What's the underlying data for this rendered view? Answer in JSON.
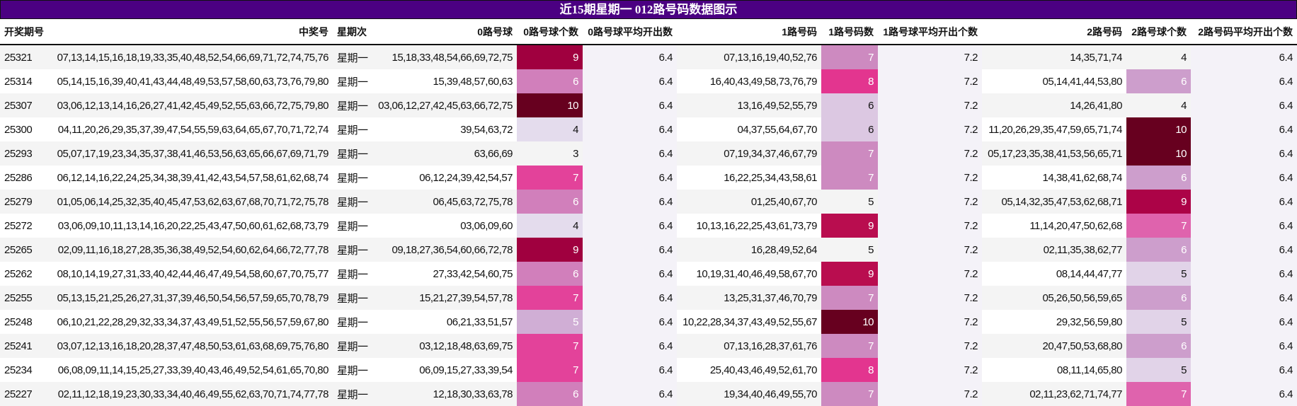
{
  "title": "近15期星期一 012路号码数据图示",
  "headers": [
    "开奖期号",
    "中奖号",
    "星期次",
    "0路号球",
    "0路号球个数",
    "0路号球平均开出数",
    "1路号码",
    "1路号码数",
    "1路号球平均开出个数",
    "2路号码",
    "2路号球个数",
    "2路号码平均开出个数"
  ],
  "rows": [
    {
      "issue": "25321",
      "numbers": "07,13,14,15,16,18,19,33,35,40,48,52,54,66,69,71,72,74,75,76",
      "weekday": "星期一",
      "r0": "15,18,33,48,54,66,69,72,75",
      "c0": "9",
      "c0_color": "#a0003f",
      "a0": "6.4",
      "r1": "07,13,16,19,40,52,76",
      "c1": "7",
      "c1_color": "#cd8ac0",
      "a1": "7.2",
      "r2": "14,35,71,74",
      "c2": "4",
      "c2_color": "",
      "a2": "6.4"
    },
    {
      "issue": "25314",
      "numbers": "05,14,15,16,39,40,41,43,44,48,49,53,57,58,60,63,73,76,79,80",
      "weekday": "星期一",
      "r0": "15,39,48,57,60,63",
      "c0": "6",
      "c0_color": "#d17fbb",
      "a0": "6.4",
      "r1": "16,40,43,49,58,73,76,79",
      "c1": "8",
      "c1_color": "#e3358f",
      "a1": "7.2",
      "r2": "05,14,41,44,53,80",
      "c2": "6",
      "c2_color": "#cd9ecc",
      "a2": "6.4"
    },
    {
      "issue": "25307",
      "numbers": "03,06,12,13,14,16,26,27,41,42,45,49,52,55,63,66,72,75,79,80",
      "weekday": "星期一",
      "r0": "03,06,12,27,42,45,63,66,72,75",
      "c0": "10",
      "c0_color": "#67001f",
      "a0": "6.4",
      "r1": "13,16,49,52,55,79",
      "c1": "6",
      "c1_color": "#dcc8e2",
      "a1": "7.2",
      "r2": "14,26,41,80",
      "c2": "4",
      "c2_color": "",
      "a2": "6.4"
    },
    {
      "issue": "25300",
      "numbers": "04,11,20,26,29,35,37,39,47,54,55,59,63,64,65,67,70,71,72,74",
      "weekday": "星期一",
      "r0": "39,54,63,72",
      "c0": "4",
      "c0_color": "#e4dced",
      "a0": "6.4",
      "r1": "04,37,55,64,67,70",
      "c1": "6",
      "c1_color": "#dcc8e2",
      "a1": "7.2",
      "r2": "11,20,26,29,35,47,59,65,71,74",
      "c2": "10",
      "c2_color": "#67001f",
      "a2": "6.4"
    },
    {
      "issue": "25293",
      "numbers": "05,07,17,19,23,34,35,37,38,41,46,53,56,63,65,66,67,69,71,79",
      "weekday": "星期一",
      "r0": "63,66,69",
      "c0": "3",
      "c0_color": "",
      "a0": "6.4",
      "r1": "07,19,34,37,46,67,79",
      "c1": "7",
      "c1_color": "#cd8ac0",
      "a1": "7.2",
      "r2": "05,17,23,35,38,41,53,56,65,71",
      "c2": "10",
      "c2_color": "#67001f",
      "a2": "6.4"
    },
    {
      "issue": "25286",
      "numbers": "06,12,14,16,22,24,25,34,38,39,41,42,43,54,57,58,61,62,68,74",
      "weekday": "星期一",
      "r0": "06,12,24,39,42,54,57",
      "c0": "7",
      "c0_color": "#e3429a",
      "a0": "6.4",
      "r1": "16,22,25,34,43,58,61",
      "c1": "7",
      "c1_color": "#cd8ac0",
      "a1": "7.2",
      "r2": "14,38,41,62,68,74",
      "c2": "6",
      "c2_color": "#cd9ecc",
      "a2": "6.4"
    },
    {
      "issue": "25279",
      "numbers": "01,05,06,14,25,32,35,40,45,47,53,62,63,67,68,70,71,72,75,78",
      "weekday": "星期一",
      "r0": "06,45,63,72,75,78",
      "c0": "6",
      "c0_color": "#d17fbb",
      "a0": "6.4",
      "r1": "01,25,40,67,70",
      "c1": "5",
      "c1_color": "",
      "a1": "7.2",
      "r2": "05,14,32,35,47,53,62,68,71",
      "c2": "9",
      "c2_color": "#ac0347",
      "a2": "6.4"
    },
    {
      "issue": "25272",
      "numbers": "03,06,09,10,11,13,14,16,20,22,25,43,47,50,60,61,62,68,73,79",
      "weekday": "星期一",
      "r0": "03,06,09,60",
      "c0": "4",
      "c0_color": "#e4dced",
      "a0": "6.4",
      "r1": "10,13,16,22,25,43,61,73,79",
      "c1": "9",
      "c1_color": "#b90d4f",
      "a1": "7.2",
      "r2": "11,14,20,47,50,62,68",
      "c2": "7",
      "c2_color": "#df63ad",
      "a2": "6.4"
    },
    {
      "issue": "25265",
      "numbers": "02,09,11,16,18,27,28,35,36,38,49,52,54,60,62,64,66,72,77,78",
      "weekday": "星期一",
      "r0": "09,18,27,36,54,60,66,72,78",
      "c0": "9",
      "c0_color": "#a0003f",
      "a0": "6.4",
      "r1": "16,28,49,52,64",
      "c1": "5",
      "c1_color": "",
      "a1": "7.2",
      "r2": "02,11,35,38,62,77",
      "c2": "6",
      "c2_color": "#cd9ecc",
      "a2": "6.4"
    },
    {
      "issue": "25262",
      "numbers": "08,10,14,19,27,31,33,40,42,44,46,47,49,54,58,60,67,70,75,77",
      "weekday": "星期一",
      "r0": "27,33,42,54,60,75",
      "c0": "6",
      "c0_color": "#d17fbb",
      "a0": "6.4",
      "r1": "10,19,31,40,46,49,58,67,70",
      "c1": "9",
      "c1_color": "#b90d4f",
      "a1": "7.2",
      "r2": "08,14,44,47,77",
      "c2": "5",
      "c2_color": "#e1d3e8",
      "a2": "6.4"
    },
    {
      "issue": "25255",
      "numbers": "05,13,15,21,25,26,27,31,37,39,46,50,54,56,57,59,65,70,78,79",
      "weekday": "星期一",
      "r0": "15,21,27,39,54,57,78",
      "c0": "7",
      "c0_color": "#e3429a",
      "a0": "6.4",
      "r1": "13,25,31,37,46,70,79",
      "c1": "7",
      "c1_color": "#cd8ac0",
      "a1": "7.2",
      "r2": "05,26,50,56,59,65",
      "c2": "6",
      "c2_color": "#cd9ecc",
      "a2": "6.4"
    },
    {
      "issue": "25248",
      "numbers": "06,10,21,22,28,29,32,33,34,37,43,49,51,52,55,56,57,59,67,80",
      "weekday": "星期一",
      "r0": "06,21,33,51,57",
      "c0": "5",
      "c0_color": "#d0aed5",
      "a0": "6.4",
      "r1": "10,22,28,34,37,43,49,52,55,67",
      "c1": "10",
      "c1_color": "#67001f",
      "a1": "7.2",
      "r2": "29,32,56,59,80",
      "c2": "5",
      "c2_color": "#e1d3e8",
      "a2": "6.4"
    },
    {
      "issue": "25241",
      "numbers": "03,07,12,13,16,18,20,28,37,47,48,50,53,61,63,68,69,75,76,80",
      "weekday": "星期一",
      "r0": "03,12,18,48,63,69,75",
      "c0": "7",
      "c0_color": "#e3429a",
      "a0": "6.4",
      "r1": "07,13,16,28,37,61,76",
      "c1": "7",
      "c1_color": "#cd8ac0",
      "a1": "7.2",
      "r2": "20,47,50,53,68,80",
      "c2": "6",
      "c2_color": "#cd9ecc",
      "a2": "6.4"
    },
    {
      "issue": "25234",
      "numbers": "06,08,09,11,14,15,25,27,33,39,40,43,46,49,52,54,61,65,70,80",
      "weekday": "星期一",
      "r0": "06,09,15,27,33,39,54",
      "c0": "7",
      "c0_color": "#e3429a",
      "a0": "6.4",
      "r1": "25,40,43,46,49,52,61,70",
      "c1": "8",
      "c1_color": "#e3358f",
      "a1": "7.2",
      "r2": "08,11,14,65,80",
      "c2": "5",
      "c2_color": "#e1d3e8",
      "a2": "6.4"
    },
    {
      "issue": "25227",
      "numbers": "02,11,12,18,19,23,30,33,34,40,46,49,55,62,63,70,71,74,77,78",
      "weekday": "星期一",
      "r0": "12,18,30,33,63,78",
      "c0": "6",
      "c0_color": "#d17fbb",
      "a0": "6.4",
      "r1": "19,34,40,46,49,55,70",
      "c1": "7",
      "c1_color": "#cd8ac0",
      "a1": "7.2",
      "r2": "02,11,23,62,71,74,77",
      "c2": "7",
      "c2_color": "#df63ad",
      "a2": "6.4"
    }
  ]
}
